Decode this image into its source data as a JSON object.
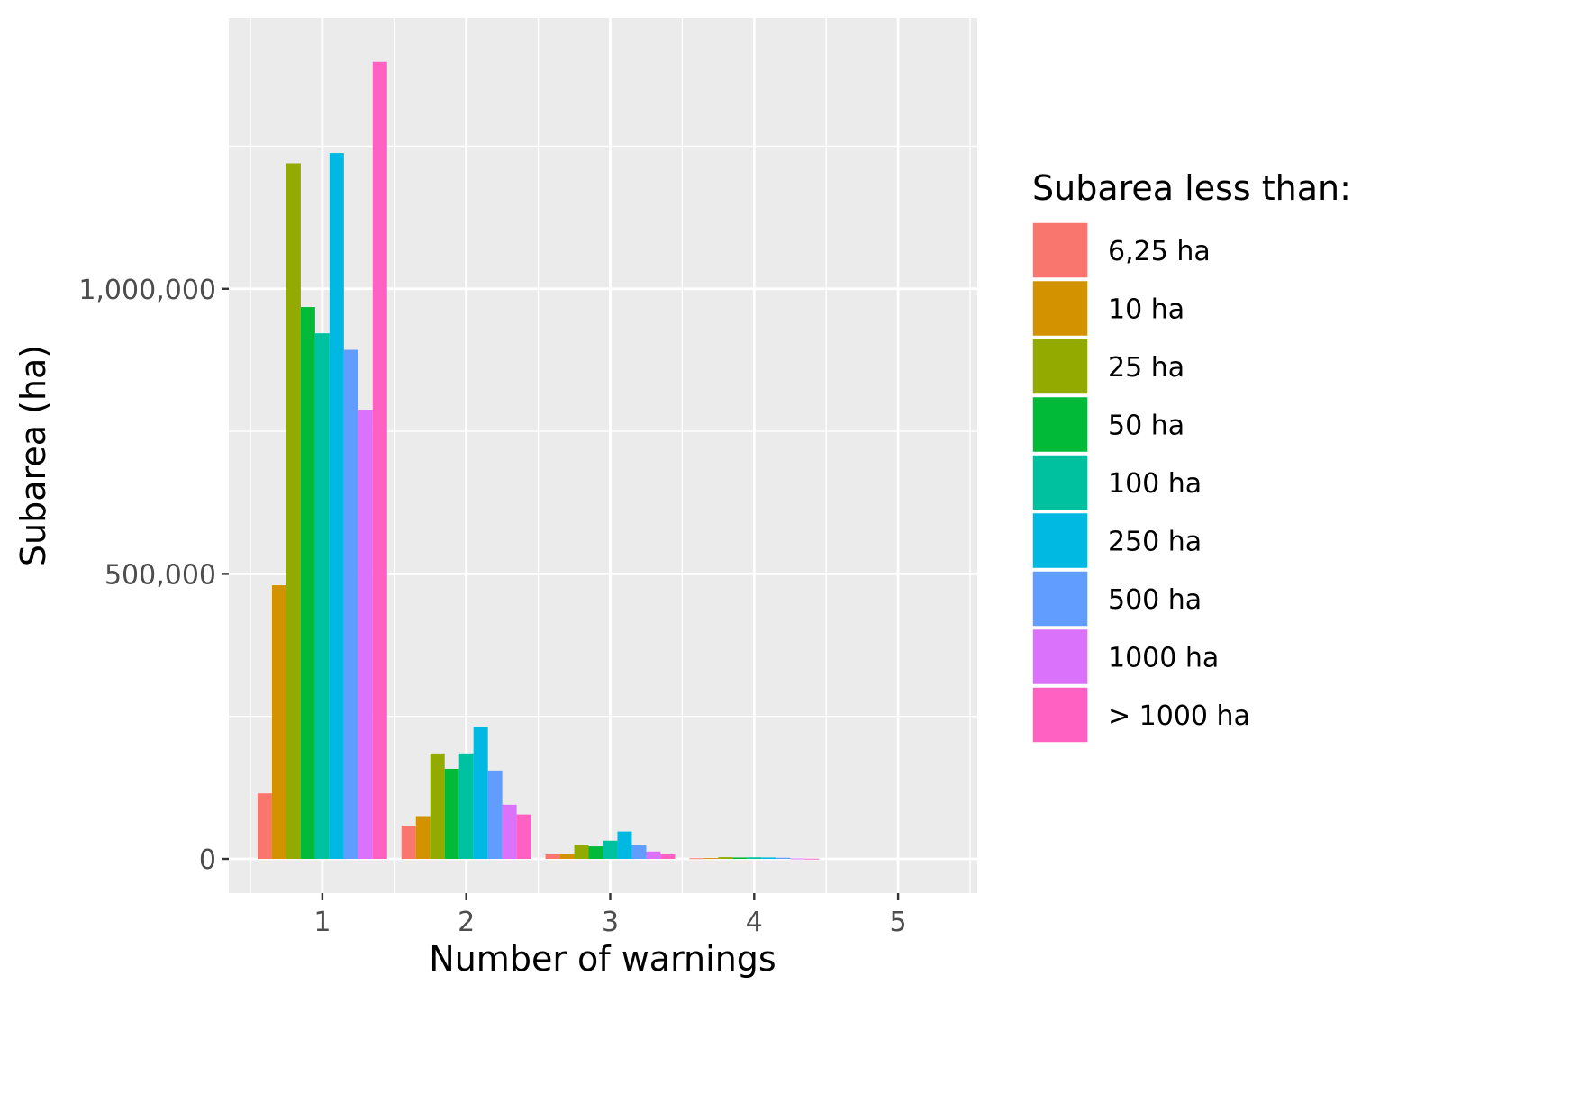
{
  "chart_data": {
    "type": "bar",
    "xlabel": "Number of warnings",
    "ylabel": "Subarea (ha)",
    "x_ticks": [
      "1",
      "2",
      "3",
      "4",
      "5"
    ],
    "y_ticks": [
      {
        "value": 0,
        "label": "0"
      },
      {
        "value": 500000,
        "label": "500,000"
      },
      {
        "value": 1000000,
        "label": "1,000,000"
      }
    ],
    "ylim": [
      -60000,
      1475000
    ],
    "xlim": [
      0.35,
      5.55
    ],
    "grid": true,
    "legend": {
      "title": "Subarea less than:",
      "position": "right"
    },
    "categories": [
      1,
      2,
      3,
      4,
      5
    ],
    "series": [
      {
        "name": "6,25 ha",
        "color": "#F8766D",
        "values": [
          115000,
          58000,
          8000,
          1200,
          0
        ]
      },
      {
        "name": "10 ha",
        "color": "#D39200",
        "values": [
          480000,
          75000,
          9000,
          1500,
          0
        ]
      },
      {
        "name": "25 ha",
        "color": "#93AA00",
        "values": [
          1220000,
          185000,
          25000,
          3000,
          0
        ]
      },
      {
        "name": "50 ha",
        "color": "#00BA38",
        "values": [
          968000,
          158000,
          22000,
          2500,
          0
        ]
      },
      {
        "name": "100 ha",
        "color": "#00C19F",
        "values": [
          922000,
          185000,
          32000,
          2800,
          0
        ]
      },
      {
        "name": "250 ha",
        "color": "#00B9E3",
        "values": [
          1238000,
          232000,
          48000,
          2500,
          0
        ]
      },
      {
        "name": "500 ha",
        "color": "#619CFF",
        "values": [
          893000,
          155000,
          25000,
          2000,
          0
        ]
      },
      {
        "name": "1000 ha",
        "color": "#DB72FB",
        "values": [
          788000,
          95000,
          13000,
          800,
          0
        ]
      },
      {
        "name": "> 1000 ha",
        "color": "#FF61C3",
        "values": [
          1398000,
          78000,
          8000,
          500,
          0
        ]
      }
    ]
  }
}
